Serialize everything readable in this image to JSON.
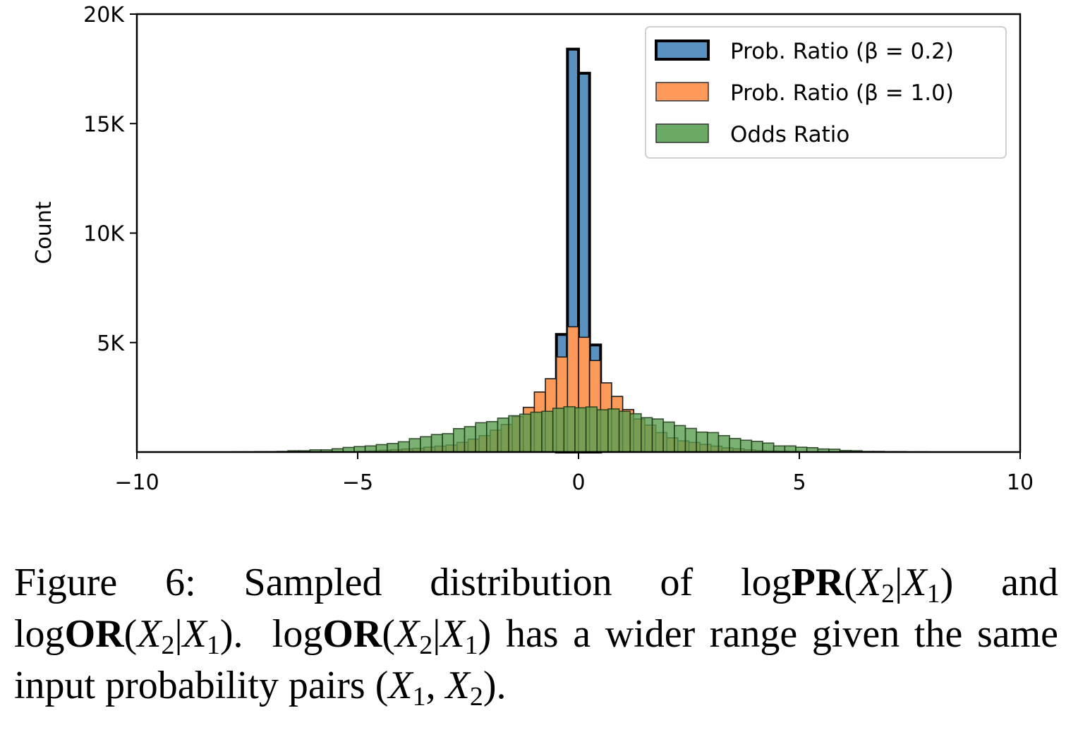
{
  "chart_data": {
    "type": "histogram",
    "title": "",
    "xlabel": "",
    "ylabel": "Count",
    "xlim": [
      -10,
      10
    ],
    "ylim": [
      0,
      20000
    ],
    "x_ticks": [
      -10,
      -5,
      0,
      5,
      10
    ],
    "x_tick_labels": [
      "−10",
      "−5",
      "0",
      "5",
      "10"
    ],
    "y_ticks": [
      5000,
      10000,
      15000,
      20000
    ],
    "y_tick_labels": [
      "5K",
      "10K",
      "15K",
      "20K"
    ],
    "grid": false,
    "legend_position": "top-right",
    "series": [
      {
        "name": "Odds Ratio",
        "legend_label": "Odds Ratio",
        "color": "#6aaa64",
        "edge_color": "#1e3a1a",
        "bin_start": -7.83,
        "bin_width": 0.25,
        "values": [
          10,
          10,
          20,
          20,
          30,
          60,
          60,
          100,
          100,
          150,
          210,
          250,
          280,
          340,
          390,
          470,
          610,
          700,
          800,
          840,
          1070,
          1160,
          1340,
          1390,
          1550,
          1660,
          1730,
          1820,
          1860,
          2000,
          2070,
          2020,
          2060,
          1930,
          1970,
          1860,
          1750,
          1570,
          1510,
          1370,
          1210,
          1080,
          910,
          890,
          750,
          620,
          540,
          490,
          410,
          280,
          280,
          220,
          200,
          140,
          130,
          70,
          60,
          30,
          30,
          20,
          20,
          10,
          10
        ]
      },
      {
        "name": "Prob. Ratio (beta = 1.0)",
        "legend_label": "Prob. Ratio (β = 1.0)",
        "color": "#fd9a5a",
        "edge_color": "#1a1a1a",
        "bin_start": -5.0,
        "bin_width": 0.25,
        "values": [
          30,
          50,
          80,
          110,
          140,
          170,
          220,
          270,
          320,
          440,
          590,
          750,
          1000,
          1260,
          1620,
          2040,
          2740,
          3350,
          4340,
          5720,
          5240,
          4180,
          3160,
          2540,
          1940,
          1510,
          1230,
          890,
          650,
          510,
          440,
          350,
          270,
          190,
          150,
          100,
          70,
          50,
          40,
          30
        ]
      },
      {
        "name": "Prob. Ratio (beta = 0.2)",
        "legend_label": "Prob. Ratio (β = 0.2)",
        "color": "#5992c1",
        "edge_color": "#000000",
        "bin_start": -0.5,
        "bin_width": 0.25,
        "values": [
          5370,
          18400,
          17300,
          4890
        ]
      }
    ]
  },
  "caption": {
    "label": "Figure 6:",
    "line1_text": "Sampled distribution of",
    "log": "log",
    "pr": "PR",
    "or": "OR",
    "x2": "X",
    "sub2": "2",
    "sub1": "1",
    "bar": "|",
    "and": "and",
    "sentence2": "has a wider range",
    "line3_text": "given the same input probability pairs",
    "pair_x1": "X",
    "comma": ",",
    "period": "."
  }
}
